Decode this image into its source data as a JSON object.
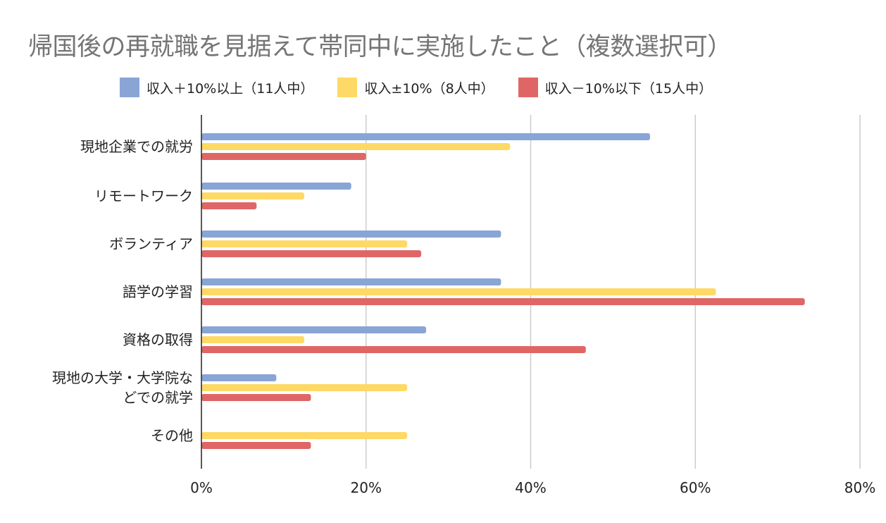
{
  "chart_data": {
    "type": "bar",
    "orientation": "horizontal",
    "title": "帰国後の再就職を見据えて帯同中に実施したこと（複数選択可）",
    "categories": [
      "現地企業での就労",
      "リモートワーク",
      "ボランティア",
      "語学の学習",
      "資格の取得",
      "現地の大学・大学院などでの就学",
      "その他"
    ],
    "category_lines": [
      [
        "現地企業での就労"
      ],
      [
        "リモートワーク"
      ],
      [
        "ボランティア"
      ],
      [
        "語学の学習"
      ],
      [
        "資格の取得"
      ],
      [
        "現地の大学・大学院な",
        "どでの就学"
      ],
      [
        "その他"
      ]
    ],
    "series": [
      {
        "name": "収入＋10%以上（11人中）",
        "color": "#89a5d6",
        "values": [
          54.5,
          18.2,
          36.4,
          36.4,
          27.3,
          9.1,
          0
        ]
      },
      {
        "name": "収入±10%（8人中）",
        "color": "#ffd966",
        "values": [
          37.5,
          12.5,
          25.0,
          62.5,
          12.5,
          25.0,
          25.0
        ]
      },
      {
        "name": "収入－10%以下（15人中）",
        "color": "#e06666",
        "values": [
          20.0,
          6.7,
          26.7,
          73.3,
          46.7,
          13.3,
          13.3
        ]
      }
    ],
    "xlim": [
      0,
      80
    ],
    "xticks": [
      "0%",
      "20%",
      "40%",
      "60%",
      "80%"
    ],
    "xlabel": "",
    "ylabel": "",
    "grid": true,
    "legend_position": "top"
  }
}
